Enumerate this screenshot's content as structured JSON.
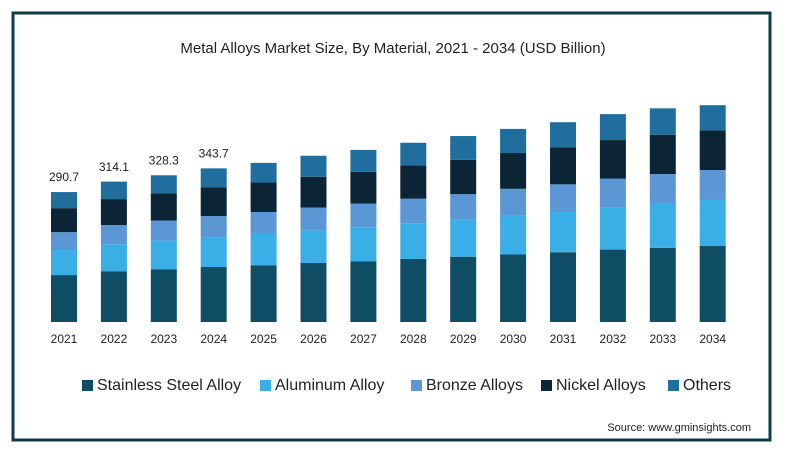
{
  "chart_data": {
    "type": "bar",
    "stacked": true,
    "title": "Metal Alloys Market Size, By Material, 2021 - 2034 (USD Billion)",
    "categories": [
      "2021",
      "2022",
      "2023",
      "2024",
      "2025",
      "2026",
      "2027",
      "2028",
      "2029",
      "2030",
      "2031",
      "2032",
      "2033",
      "2034"
    ],
    "series": [
      {
        "name": "Stainless Steel Alloy",
        "color": "#0e4d64",
        "values": [
          105,
          113,
          118,
          123,
          127,
          132,
          136,
          141,
          146,
          151,
          156,
          162,
          166,
          170
        ]
      },
      {
        "name": "Aluminum Alloy",
        "color": "#3aaee6",
        "values": [
          56,
          61,
          64,
          67,
          70,
          73,
          76,
          80,
          83,
          87,
          90,
          95,
          99,
          103
        ]
      },
      {
        "name": "Bronze Alloys",
        "color": "#5a97d4",
        "values": [
          40,
          43,
          45,
          47,
          49,
          51,
          53,
          55,
          57,
          60,
          62,
          64,
          66,
          67
        ]
      },
      {
        "name": "Nickel Alloys",
        "color": "#0b2536",
        "values": [
          53.7,
          58,
          61,
          64,
          66,
          69,
          71,
          74,
          77,
          80,
          83,
          86,
          88,
          89
        ]
      },
      {
        "name": "Others",
        "color": "#1f6e9e",
        "values": [
          36,
          39.1,
          40.3,
          42.7,
          44,
          47,
          49,
          51,
          53,
          54,
          56,
          58,
          59,
          56
        ]
      }
    ],
    "totals": [
      290.7,
      314.1,
      328.3,
      343.7,
      null,
      null,
      null,
      null,
      null,
      null,
      null,
      null,
      null,
      null
    ],
    "source": "Source: www.gminsights.com"
  }
}
